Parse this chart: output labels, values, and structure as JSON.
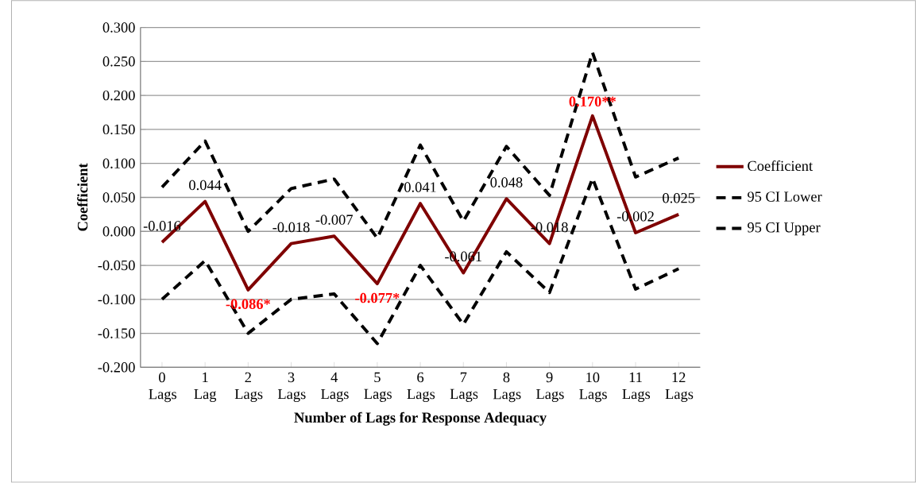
{
  "chart_data": {
    "type": "line",
    "xlabel": "Number of Lags for Response Adequacy",
    "ylabel": "Coefficient",
    "categories": [
      "0 Lags",
      "1 Lag",
      "2 Lags",
      "3 Lags",
      "4 Lags",
      "5 Lags",
      "6 Lags",
      "7 Lags",
      "8 Lags",
      "9 Lags",
      "10 Lags",
      "11 Lags",
      "12 Lags"
    ],
    "series": [
      {
        "name": "Coefficient",
        "color": "#7f0000",
        "line_style": "solid",
        "values": [
          -0.016,
          0.044,
          -0.086,
          -0.018,
          -0.007,
          -0.077,
          0.041,
          -0.061,
          0.048,
          -0.018,
          0.17,
          -0.002,
          0.025
        ],
        "value_labels": [
          "-0.016",
          "0.044",
          null,
          "-0.018",
          "-0.007",
          null,
          "0.041",
          "-0.061",
          "0.048",
          "-0.018",
          null,
          "-0.002",
          "0.025"
        ]
      },
      {
        "name": "95 CI Lower",
        "color": "#000000",
        "line_style": "dashed",
        "values": [
          -0.1,
          -0.043,
          -0.15,
          -0.1,
          -0.092,
          -0.165,
          -0.05,
          -0.137,
          -0.03,
          -0.09,
          0.078,
          -0.085,
          -0.055
        ]
      },
      {
        "name": "95 CI Upper",
        "color": "#000000",
        "line_style": "dashed",
        "values": [
          0.065,
          0.133,
          0.0,
          0.063,
          0.077,
          -0.01,
          0.127,
          0.015,
          0.125,
          0.053,
          0.263,
          0.08,
          0.108
        ]
      }
    ],
    "ylim": [
      -0.2,
      0.3
    ],
    "yticks": [
      {
        "value": -0.2,
        "label": "-0.200"
      },
      {
        "value": -0.15,
        "label": "-0.150"
      },
      {
        "value": -0.1,
        "label": "-0.100"
      },
      {
        "value": -0.05,
        "label": "-0.050"
      },
      {
        "value": 0,
        "label": "0.000"
      },
      {
        "value": 0.05,
        "label": "0.050"
      },
      {
        "value": 0.1,
        "label": "0.100"
      },
      {
        "value": 0.15,
        "label": "0.150"
      },
      {
        "value": 0.2,
        "label": "0.200"
      },
      {
        "value": 0.25,
        "label": "0.250"
      },
      {
        "value": 0.3,
        "label": "0.300"
      }
    ],
    "grid": "y",
    "legend": "right",
    "marker": "none",
    "annotations": [
      {
        "text": "-0.086*",
        "x": "2 Lags",
        "y": -0.086
      },
      {
        "text": "-0.077*",
        "x": "5 Lags",
        "y": -0.077
      },
      {
        "text": "0.170**",
        "x": "10 Lags",
        "y": 0.17
      }
    ]
  }
}
